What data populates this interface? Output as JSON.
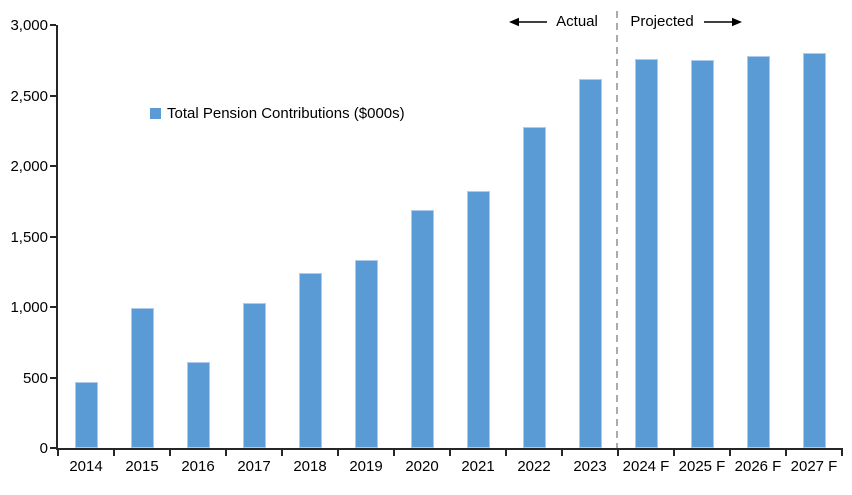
{
  "chart_data": {
    "type": "bar",
    "title": "",
    "legend": "Total Pension Contributions ($000s)",
    "categories": [
      "2014",
      "2015",
      "2016",
      "2017",
      "2018",
      "2019",
      "2020",
      "2021",
      "2022",
      "2023",
      "2024 F",
      "2025 F",
      "2026 F",
      "2027 F"
    ],
    "values": [
      470,
      990,
      610,
      1030,
      1240,
      1330,
      1690,
      1820,
      2280,
      2620,
      2760,
      2750,
      2780,
      2800
    ],
    "xlabel": "",
    "ylabel": "",
    "ylim": [
      0,
      3000
    ],
    "ytick_step": 500,
    "ytick_labels": [
      "0",
      "500",
      "1,000",
      "1,500",
      "2,000",
      "2,500",
      "3,000"
    ],
    "grid": false,
    "legend_position": "inside-upper-left",
    "annotations": {
      "actual_label": "Actual",
      "projected_label": "Projected",
      "divider_between": [
        "2023",
        "2024 F"
      ]
    },
    "colors": {
      "bar_fill": "#5B9BD5",
      "bar_border": "#AECBEB",
      "axis": "#262626",
      "divider": "#ABABAB",
      "text": "#000000",
      "background": "#FFFFFF"
    }
  }
}
